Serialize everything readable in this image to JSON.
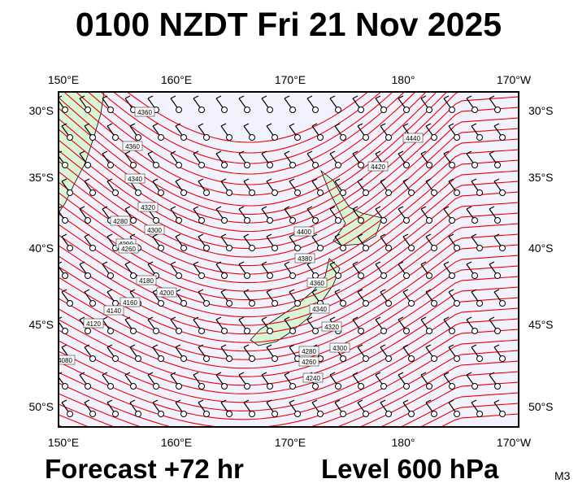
{
  "header": {
    "title": "0100 NZDT Fri 21 Nov 2025"
  },
  "map": {
    "longitude_labels": [
      "150°E",
      "160°E",
      "170°E",
      "180°",
      "170°W"
    ],
    "latitude_labels": [
      "30°S",
      "35°S",
      "40°S",
      "45°S",
      "50°S"
    ],
    "contour_labels": [
      "4360",
      "4360",
      "4340",
      "4320",
      "4280",
      "4300",
      "4290",
      "4260",
      "4200",
      "4180",
      "4160",
      "4140",
      "4120",
      "4080",
      "4400",
      "4380",
      "4360",
      "4420",
      "4440",
      "4340",
      "4320",
      "4300",
      "4280",
      "4260",
      "4240"
    ]
  },
  "footer": {
    "forecast": "Forecast +72 hr",
    "level": "Level 600 hPa",
    "code": "M3"
  }
}
